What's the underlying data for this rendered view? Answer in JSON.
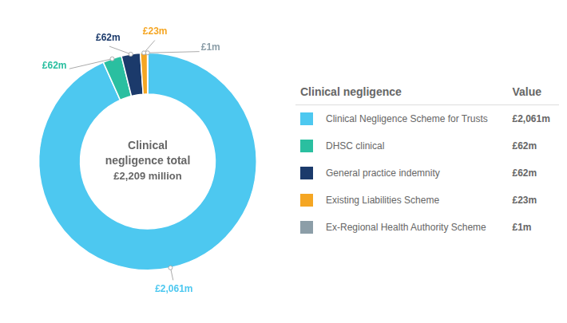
{
  "chart_data": {
    "type": "doughnut",
    "categories": [
      "Clinical Negligence Scheme for Trusts",
      "DHSC clinical",
      "General practice indemnity",
      "Existing Liabilities Scheme",
      "Ex-Regional Health Authority Scheme"
    ],
    "values": [
      2061,
      62,
      62,
      23,
      1
    ],
    "value_labels": [
      "£2,061m",
      "£62m",
      "£62m",
      "£23m",
      "£1m"
    ],
    "colors": [
      "#4DC8F0",
      "#2ABFA0",
      "#1B3A6B",
      "#F5A623",
      "#8C9EA8"
    ],
    "data_labels": true,
    "legend": "right",
    "legend_title": "Clinical negligence",
    "legend_value_header": "Value",
    "annotations": [
      "Clinical",
      "negligence total",
      "£2,209 million"
    ]
  }
}
